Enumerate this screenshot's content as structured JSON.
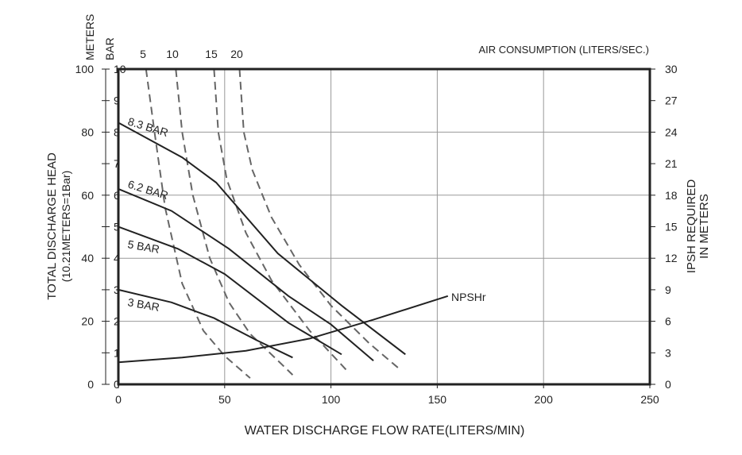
{
  "chart_data": {
    "type": "line",
    "title": "",
    "xlabel": "WATER DISCHARGE FLOW RATE(LITERS/MIN)",
    "xlim": [
      0,
      250
    ],
    "x_ticks": [
      "0",
      "50",
      "100",
      "150",
      "200",
      "250"
    ],
    "ylabel_left": [
      "TOTAL  DISCHARGE  HEAD",
      "(10.21METERS=1Bar)"
    ],
    "ylim": [
      0,
      10
    ],
    "left_unit_labels": {
      "meters": "METERS",
      "bar": "BAR"
    },
    "meters_ticks": [
      "0",
      "20",
      "40",
      "60",
      "80",
      "100"
    ],
    "bar_ticks": [
      "0",
      "1",
      "2",
      "3",
      "4",
      "5",
      "6",
      "7",
      "8",
      "9",
      "10"
    ],
    "ylabel_right": [
      "IPSH  REQUIRED",
      "IN  METERS"
    ],
    "right_ticks": [
      "0",
      "3",
      "6",
      "9",
      "12",
      "15",
      "18",
      "21",
      "24",
      "27",
      "30"
    ],
    "right_ylim": [
      0,
      30
    ],
    "air_consumption_label": "AIR CONSUMPTION (LITERS/SEC.)",
    "grid": true,
    "series": [
      {
        "name": "8.3 BAR",
        "style": "solid",
        "color": "#222222",
        "points": [
          [
            0,
            8.3
          ],
          [
            30,
            7.2
          ],
          [
            46,
            6.4
          ],
          [
            75,
            4.15
          ],
          [
            105,
            2.5
          ],
          [
            135,
            0.95
          ]
        ]
      },
      {
        "name": "6.2 BAR",
        "style": "solid",
        "color": "#222222",
        "points": [
          [
            0,
            6.2
          ],
          [
            25,
            5.5
          ],
          [
            52,
            4.3
          ],
          [
            80,
            2.8
          ],
          [
            100,
            1.9
          ],
          [
            120,
            0.75
          ]
        ]
      },
      {
        "name": "5 BAR",
        "style": "solid",
        "color": "#222222",
        "points": [
          [
            0,
            5.0
          ],
          [
            28,
            4.3
          ],
          [
            50,
            3.5
          ],
          [
            80,
            1.95
          ],
          [
            105,
            0.95
          ]
        ]
      },
      {
        "name": "3 BAR",
        "style": "solid",
        "color": "#222222",
        "points": [
          [
            0,
            3.0
          ],
          [
            25,
            2.6
          ],
          [
            45,
            2.1
          ],
          [
            65,
            1.4
          ],
          [
            82,
            0.85
          ]
        ]
      },
      {
        "name": "NPSHr",
        "style": "solid",
        "color": "#222222",
        "axis": "right",
        "points": [
          [
            0,
            2.1
          ],
          [
            30,
            2.55
          ],
          [
            60,
            3.2
          ],
          [
            90,
            4.35
          ],
          [
            120,
            6.15
          ],
          [
            155,
            8.4
          ]
        ]
      }
    ],
    "air_consumption_curves": [
      {
        "name": "5",
        "style": "dashed",
        "color": "#666666",
        "points": [
          [
            13,
            10
          ],
          [
            17,
            8.0
          ],
          [
            22,
            5.6
          ],
          [
            30,
            3.2
          ],
          [
            40,
            1.7
          ],
          [
            50,
            0.9
          ],
          [
            62,
            0.2
          ]
        ]
      },
      {
        "name": "10",
        "style": "dashed",
        "color": "#666666",
        "points": [
          [
            27,
            10
          ],
          [
            30,
            8.0
          ],
          [
            35,
            6.0
          ],
          [
            43,
            4.0
          ],
          [
            52,
            2.6
          ],
          [
            62,
            1.6
          ],
          [
            82,
            0.3
          ]
        ]
      },
      {
        "name": "15",
        "style": "dashed",
        "color": "#666666",
        "points": [
          [
            45,
            10
          ],
          [
            47,
            8.0
          ],
          [
            51,
            6.5
          ],
          [
            60,
            4.8
          ],
          [
            72,
            3.3
          ],
          [
            90,
            1.7
          ],
          [
            108,
            0.4
          ]
        ]
      },
      {
        "name": "20",
        "style": "dashed",
        "color": "#666666",
        "points": [
          [
            57,
            10
          ],
          [
            59,
            8.0
          ],
          [
            63,
            6.8
          ],
          [
            72,
            5.3
          ],
          [
            85,
            3.8
          ],
          [
            100,
            2.5
          ],
          [
            118,
            1.3
          ],
          [
            132,
            0.5
          ]
        ]
      }
    ],
    "curve_labels": [
      {
        "text": "8.3 BAR",
        "series": "8.3 BAR"
      },
      {
        "text": "6.2 BAR",
        "series": "6.2 BAR"
      },
      {
        "text": "5 BAR",
        "series": "5 BAR"
      },
      {
        "text": "3 BAR",
        "series": "3 BAR"
      },
      {
        "text": "NPSHr",
        "series": "NPSHr"
      }
    ],
    "air_top_labels": [
      "5",
      "10",
      "15",
      "20"
    ]
  }
}
